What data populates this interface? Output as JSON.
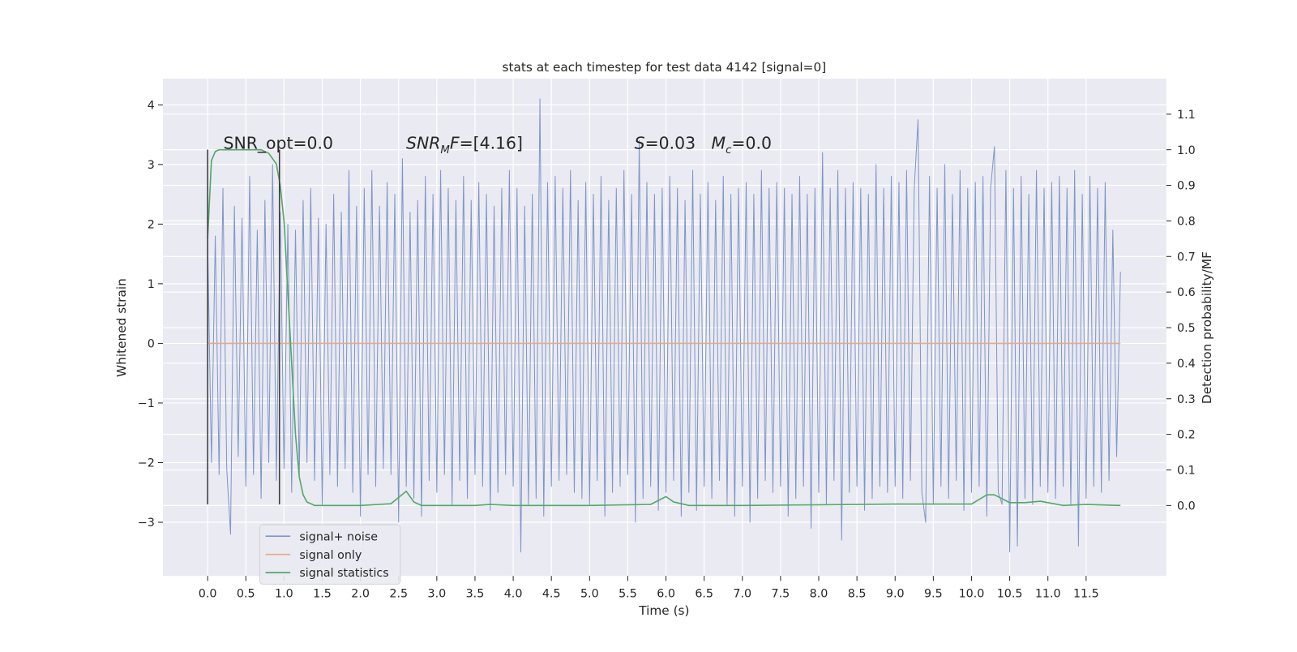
{
  "chart_data": {
    "type": "line",
    "title": "stats at each timestep for test data 4142 [signal=0]",
    "x_label": "Time (s)",
    "y_label": "Whitened strain",
    "y2_label": "Detection probability/MF",
    "xlim": [
      -0.585,
      12.55
    ],
    "ylim": [
      -3.9,
      4.44
    ],
    "y2lim": [
      -0.198,
      1.2
    ],
    "xticks": [
      {
        "value": 0,
        "label": "0.0"
      },
      0.5,
      {
        "value": 1,
        "label": "1.0"
      },
      1.5,
      {
        "value": 2,
        "label": "2.0"
      },
      2.5,
      {
        "value": 3,
        "label": "3.0"
      },
      3.5,
      {
        "value": 4,
        "label": "4.0"
      },
      4.5,
      {
        "value": 5,
        "label": "5.0"
      },
      5.5,
      {
        "value": 6,
        "label": "6.0"
      },
      6.5,
      {
        "value": 7,
        "label": "7.0"
      },
      7.5,
      {
        "value": 8,
        "label": "8.0"
      },
      8.5,
      {
        "value": 9,
        "label": "9.0"
      },
      9.5,
      {
        "value": 10,
        "label": "10.0"
      },
      10.5,
      {
        "value": 11,
        "label": "11.0"
      },
      11.5
    ],
    "yticks": [
      {
        "value": -3,
        "label": "−3"
      },
      {
        "value": -2,
        "label": "−2"
      },
      {
        "value": -1,
        "label": "−1"
      },
      0,
      1,
      2,
      3,
      4
    ],
    "y2ticks": [
      {
        "value": 0,
        "label": "0.0"
      },
      0.1,
      0.2,
      0.3,
      0.4,
      0.5,
      0.6,
      0.7,
      0.8,
      0.9,
      {
        "value": 1,
        "label": "1.0"
      },
      1.1
    ],
    "grid": true,
    "legend": "lower left",
    "annotations": [
      [
        {
          "text": "SNR_opt=0.0",
          "style": "normal"
        }
      ],
      [
        {
          "text": "SNR",
          "style": "italic"
        },
        {
          "text": "M",
          "style": "sub"
        },
        {
          "text": "F",
          "style": "italic"
        },
        {
          "text": "=[4.16]",
          "style": "normal"
        }
      ],
      [
        {
          "text": "S",
          "style": "italic"
        },
        {
          "text": "=0.03   ",
          "style": "normal"
        },
        {
          "text": "M",
          "style": "italic"
        },
        {
          "text": "c",
          "style": "sub"
        },
        {
          "text": "=0.0",
          "style": "normal"
        }
      ]
    ],
    "vlines": {
      "x": [
        0,
        0.94
      ],
      "ymin": -2.7,
      "ymax": 3.25,
      "color": "#3a3a3a"
    },
    "series": [
      {
        "name": "signal+ noise",
        "color": "#7f96c8",
        "axis": "y",
        "x": [
          0,
          0.05,
          0.1,
          0.15,
          0.2,
          0.25,
          0.3,
          0.35,
          0.4,
          0.45,
          0.5,
          0.55,
          0.6,
          0.65,
          0.7,
          0.75,
          0.8,
          0.85,
          0.9,
          0.95,
          1,
          1.05,
          1.1,
          1.15,
          1.2,
          1.25,
          1.3,
          1.35,
          1.4,
          1.45,
          1.5,
          1.55,
          1.6,
          1.65,
          1.7,
          1.75,
          1.8,
          1.85,
          1.9,
          1.95,
          2,
          2.05,
          2.1,
          2.15,
          2.2,
          2.25,
          2.3,
          2.35,
          2.4,
          2.45,
          2.5,
          2.55,
          2.6,
          2.65,
          2.7,
          2.75,
          2.8,
          2.85,
          2.9,
          2.95,
          3,
          3.05,
          3.1,
          3.15,
          3.2,
          3.25,
          3.3,
          3.35,
          3.4,
          3.45,
          3.5,
          3.55,
          3.6,
          3.65,
          3.7,
          3.75,
          3.8,
          3.85,
          3.9,
          3.95,
          4,
          4.05,
          4.1,
          4.15,
          4.2,
          4.25,
          4.3,
          4.35,
          4.4,
          4.45,
          4.5,
          4.55,
          4.6,
          4.65,
          4.7,
          4.75,
          4.8,
          4.85,
          4.9,
          4.95,
          5,
          5.05,
          5.1,
          5.15,
          5.2,
          5.25,
          5.3,
          5.35,
          5.4,
          5.45,
          5.5,
          5.55,
          5.6,
          5.65,
          5.7,
          5.75,
          5.8,
          5.85,
          5.9,
          5.95,
          6,
          6.05,
          6.1,
          6.15,
          6.2,
          6.25,
          6.3,
          6.35,
          6.4,
          6.45,
          6.5,
          6.55,
          6.6,
          6.65,
          6.7,
          6.75,
          6.8,
          6.85,
          6.9,
          6.95,
          7,
          7.05,
          7.1,
          7.15,
          7.2,
          7.25,
          7.3,
          7.35,
          7.4,
          7.45,
          7.5,
          7.55,
          7.6,
          7.65,
          7.7,
          7.75,
          7.8,
          7.85,
          7.9,
          7.95,
          8,
          8.05,
          8.1,
          8.15,
          8.2,
          8.25,
          8.3,
          8.35,
          8.4,
          8.45,
          8.5,
          8.55,
          8.6,
          8.65,
          8.7,
          8.75,
          8.8,
          8.85,
          8.9,
          8.95,
          9,
          9.05,
          9.1,
          9.15,
          9.2,
          9.25,
          9.3,
          9.35,
          9.4,
          9.45,
          9.5,
          9.55,
          9.6,
          9.65,
          9.7,
          9.75,
          9.8,
          9.85,
          9.9,
          9.95,
          10,
          10.05,
          10.1,
          10.15,
          10.2,
          10.25,
          10.3,
          10.35,
          10.4,
          10.45,
          10.5,
          10.55,
          10.6,
          10.65,
          10.7,
          10.75,
          10.8,
          10.85,
          10.9,
          10.95,
          11,
          11.05,
          11.1,
          11.15,
          11.2,
          11.25,
          11.3,
          11.35,
          11.4,
          11.45,
          11.5,
          11.55,
          11.6,
          11.65,
          11.7,
          11.75,
          11.8,
          11.85,
          11.9,
          11.95
        ],
        "values": [
          1.7,
          -2.0,
          1.8,
          -2.2,
          2.6,
          -2.1,
          -3.2,
          2.3,
          -1.9,
          2.1,
          -2.4,
          2.8,
          -2.2,
          1.9,
          -2.6,
          2.4,
          -2.0,
          3.0,
          -2.3,
          2.2,
          -2.1,
          2.0,
          -2.5,
          1.9,
          -2.2,
          2.4,
          -2.0,
          2.6,
          -2.3,
          2.1,
          -2.7,
          2.0,
          -2.2,
          2.5,
          -2.4,
          2.2,
          -2.1,
          2.9,
          -2.5,
          2.3,
          -2.9,
          2.6,
          -2.2,
          2.9,
          -2.4,
          2.3,
          -2.1,
          2.7,
          -2.2,
          2.5,
          -3.0,
          3.1,
          -2.4,
          2.2,
          -2.6,
          2.4,
          -2.9,
          2.8,
          -2.3,
          2.5,
          -2.5,
          2.9,
          -2.2,
          2.6,
          -2.7,
          2.4,
          -2.3,
          2.8,
          -2.6,
          2.4,
          -2.2,
          2.7,
          -2.4,
          2.5,
          -2.8,
          2.3,
          -2.5,
          2.6,
          -2.2,
          2.9,
          -2.4,
          2.6,
          -3.5,
          2.3,
          -2.7,
          2.5,
          -2.6,
          4.1,
          -2.9,
          2.7,
          -2.4,
          2.8,
          -2.3,
          2.6,
          -2.2,
          2.9,
          -2.5,
          2.4,
          -2.6,
          2.7,
          -2.7,
          2.5,
          -2.3,
          2.8,
          -2.9,
          2.4,
          -2.5,
          2.6,
          -2.4,
          2.9,
          -2.2,
          2.5,
          -3.0,
          3.4,
          -2.6,
          2.7,
          -2.4,
          2.5,
          -2.8,
          2.6,
          -2.5,
          2.8,
          -2.3,
          2.6,
          -2.9,
          2.4,
          -2.5,
          2.9,
          -2.8,
          2.5,
          -2.4,
          2.7,
          -2.6,
          2.4,
          -2.3,
          2.8,
          -2.7,
          2.5,
          -2.9,
          2.6,
          -2.4,
          2.7,
          -3.0,
          2.5,
          -2.6,
          2.9,
          -2.3,
          2.6,
          -2.5,
          2.7,
          -2.4,
          2.6,
          -2.9,
          2.5,
          -2.6,
          2.8,
          -2.4,
          2.5,
          -3.1,
          2.6,
          -2.5,
          3.2,
          -2.7,
          2.6,
          -2.3,
          2.9,
          -3.3,
          2.6,
          -2.5,
          2.7,
          -2.4,
          2.6,
          -2.8,
          2.5,
          -2.6,
          3.0,
          -2.4,
          2.6,
          -2.5,
          2.8,
          -2.4,
          2.7,
          -2.6,
          2.9,
          -2.3,
          2.6,
          3.75,
          -2.5,
          -3.0,
          2.8,
          -2.7,
          2.6,
          -2.4,
          3.0,
          -2.6,
          2.5,
          -2.3,
          2.9,
          -2.8,
          2.6,
          -2.5,
          2.7,
          -2.4,
          2.8,
          -2.9,
          2.6,
          3.3,
          -2.5,
          -2.7,
          2.9,
          -3.5,
          2.6,
          -3.4,
          2.8,
          -2.6,
          2.5,
          -2.7,
          2.9,
          -2.4,
          2.6,
          -2.5,
          2.7,
          -2.6,
          2.8,
          -2.4,
          2.6,
          -2.7,
          2.9,
          -3.4,
          2.5,
          -2.6,
          2.8,
          -2.4,
          2.6,
          -2.5,
          2.7,
          -2.3,
          1.9,
          -1.9,
          1.2
        ]
      },
      {
        "name": "signal only",
        "color": "#e6a98a",
        "axis": "y",
        "x": [
          0,
          11.95
        ],
        "values": [
          0,
          0
        ]
      },
      {
        "name": "signal statistics",
        "color": "#55a868",
        "axis": "y2",
        "x": [
          0,
          0.05,
          0.1,
          0.15,
          0.2,
          0.3,
          0.4,
          0.5,
          0.6,
          0.7,
          0.8,
          0.9,
          0.95,
          1.0,
          1.05,
          1.1,
          1.15,
          1.2,
          1.25,
          1.3,
          1.35,
          1.4,
          1.5,
          2.0,
          2.4,
          2.6,
          2.7,
          2.8,
          3.0,
          3.5,
          3.7,
          4.0,
          5.0,
          5.8,
          6.0,
          6.1,
          6.3,
          7.0,
          8.5,
          9.0,
          10.0,
          10.2,
          10.3,
          10.5,
          10.7,
          10.9,
          11.2,
          11.5,
          11.95
        ],
        "values": [
          0.75,
          0.97,
          0.995,
          1.0,
          1.0,
          1,
          1,
          1,
          1,
          1,
          0.99,
          0.96,
          0.9,
          0.8,
          0.6,
          0.4,
          0.2,
          0.08,
          0.03,
          0.01,
          0.005,
          0,
          0,
          0,
          0.005,
          0.04,
          0.01,
          0,
          0,
          0,
          0.003,
          0,
          0,
          0.003,
          0.025,
          0.01,
          0,
          0,
          0.003,
          0.004,
          0.004,
          0.03,
          0.03,
          0.008,
          0.008,
          0.012,
          0,
          0.003,
          0
        ]
      }
    ]
  }
}
